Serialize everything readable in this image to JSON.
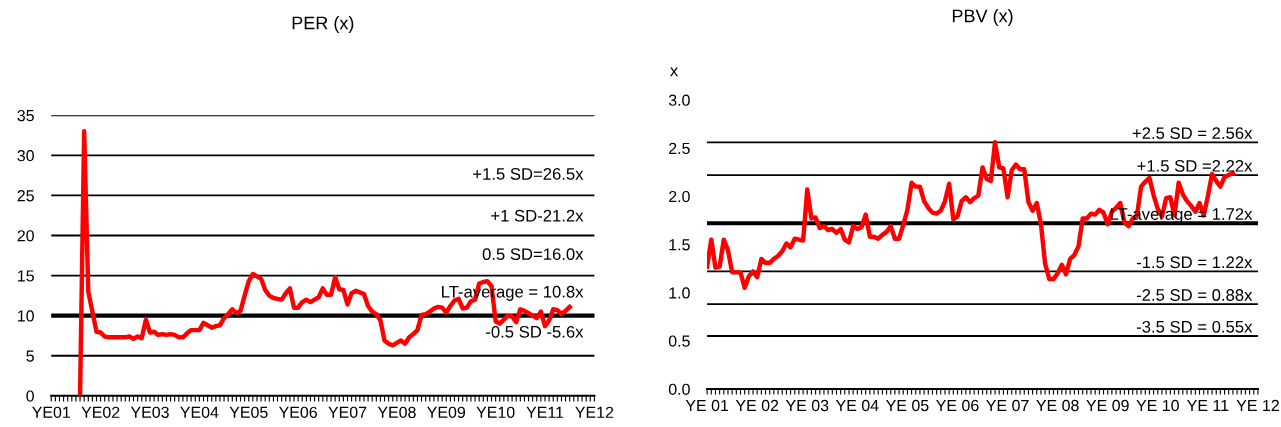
{
  "chart_data": [
    {
      "type": "line",
      "title": "PER (x)",
      "categories": [
        "YE01",
        null,
        null,
        null,
        null,
        null,
        null,
        null,
        null,
        null,
        null,
        null,
        "YE02",
        null,
        null,
        null,
        null,
        null,
        null,
        null,
        null,
        null,
        null,
        null,
        "YE03",
        null,
        null,
        null,
        null,
        null,
        null,
        null,
        null,
        null,
        null,
        null,
        "YE04",
        null,
        null,
        null,
        null,
        null,
        null,
        null,
        null,
        null,
        null,
        null,
        "YE05",
        null,
        null,
        null,
        null,
        null,
        null,
        null,
        null,
        null,
        null,
        null,
        "YE06",
        null,
        null,
        null,
        null,
        null,
        null,
        null,
        null,
        null,
        null,
        null,
        "YE07",
        null,
        null,
        null,
        null,
        null,
        null,
        null,
        null,
        null,
        null,
        null,
        "YE08",
        null,
        null,
        null,
        null,
        null,
        null,
        null,
        null,
        null,
        null,
        null,
        "YE09",
        null,
        null,
        null,
        null,
        null,
        null,
        null,
        null,
        null,
        null,
        null,
        "YE10",
        null,
        null,
        null,
        null,
        null,
        null,
        null,
        null,
        null,
        null,
        null,
        "YE11",
        null,
        null,
        null,
        null,
        null,
        null,
        null,
        null,
        null,
        null,
        null,
        "YE12"
      ],
      "ylim": [
        0,
        35
      ],
      "yticks": [
        0,
        5,
        10,
        15,
        20,
        25,
        30,
        35
      ],
      "grid": "y",
      "legend": false,
      "marker": "none",
      "line_style": "solid",
      "series": [
        {
          "color": "#ff0000",
          "values": [
            null,
            null,
            null,
            null,
            null,
            null,
            null,
            0,
            33,
            13,
            10.5,
            8,
            7.9,
            7.4,
            7.3,
            7.3,
            7.3,
            7.3,
            7.3,
            7.4,
            7.1,
            7.4,
            7.2,
            9.5,
            7.9,
            8.0,
            7.6,
            7.7,
            7.6,
            7.7,
            7.6,
            7.3,
            7.3,
            7.8,
            8.2,
            8.2,
            8.2,
            9.1,
            8.8,
            8.5,
            8.7,
            8.8,
            9.7,
            10.2,
            10.8,
            10.3,
            10.6,
            12.5,
            14.3,
            15.2,
            14.9,
            14.6,
            13.2,
            12.5,
            12.2,
            12.1,
            12.0,
            12.8,
            13.4,
            11.0,
            11.0,
            11.7,
            12.0,
            11.7,
            12.0,
            12.3,
            13.4,
            12.6,
            12.6,
            14.8,
            13.3,
            13.2,
            11.4,
            12.8,
            13.1,
            12.9,
            12.7,
            11.2,
            10.5,
            10.2,
            9.4,
            6.9,
            6.5,
            6.3,
            6.6,
            6.9,
            6.5,
            7.3,
            7.7,
            8.2,
            10.1,
            10.2,
            10.5,
            10.9,
            11.1,
            11.0,
            10.4,
            11.2,
            11.9,
            12.1,
            10.9,
            11.0,
            11.8,
            12.0,
            14.0,
            14.2,
            14.3,
            13.7,
            9.3,
            9.0,
            9.5,
            10.0,
            9.9,
            9.2,
            10.8,
            10.6,
            10.3,
            10.0,
            9.7,
            10.5,
            8.7,
            9.4,
            10.8,
            10.7,
            10.2,
            10.6,
            11.1,
            null,
            null,
            null,
            null,
            null,
            null
          ]
        }
      ],
      "ref_lines": [
        {
          "axis": "y",
          "value": 10,
          "color": "#000000"
        }
      ],
      "annotations": [
        "+1.5 SD=26.5x",
        "+1 SD-21.2x",
        "0.5 SD=16.0x",
        "LT-average = 10.8x",
        "-0.5 SD -5.6x"
      ]
    },
    {
      "type": "line",
      "title": "PBV (x)",
      "ylabel": "x",
      "categories": [
        "YE 01",
        null,
        null,
        null,
        null,
        null,
        null,
        null,
        null,
        null,
        null,
        null,
        "YE 02",
        null,
        null,
        null,
        null,
        null,
        null,
        null,
        null,
        null,
        null,
        null,
        "YE 03",
        null,
        null,
        null,
        null,
        null,
        null,
        null,
        null,
        null,
        null,
        null,
        "YE 04",
        null,
        null,
        null,
        null,
        null,
        null,
        null,
        null,
        null,
        null,
        null,
        "YE 05",
        null,
        null,
        null,
        null,
        null,
        null,
        null,
        null,
        null,
        null,
        null,
        "YE 06",
        null,
        null,
        null,
        null,
        null,
        null,
        null,
        null,
        null,
        null,
        null,
        "YE 07",
        null,
        null,
        null,
        null,
        null,
        null,
        null,
        null,
        null,
        null,
        null,
        "YE 08",
        null,
        null,
        null,
        null,
        null,
        null,
        null,
        null,
        null,
        null,
        null,
        "YE 09",
        null,
        null,
        null,
        null,
        null,
        null,
        null,
        null,
        null,
        null,
        null,
        "YE 10",
        null,
        null,
        null,
        null,
        null,
        null,
        null,
        null,
        null,
        null,
        null,
        "YE 11",
        null,
        null,
        null,
        null,
        null,
        null,
        null,
        null,
        null,
        null,
        null,
        "YE 12"
      ],
      "ylim": [
        0,
        3.0
      ],
      "yticks": [
        {
          "value": 0,
          "label": "0.0"
        },
        {
          "value": 0.5,
          "label": "0.5"
        },
        {
          "value": 1.0,
          "label": "1.0"
        },
        {
          "value": 1.5,
          "label": "1.5"
        },
        {
          "value": 2.0,
          "label": "2.0"
        },
        {
          "value": 2.5,
          "label": "2.5"
        },
        {
          "value": 3.0,
          "label": "3.0"
        }
      ],
      "grid": false,
      "legend": false,
      "marker": "none",
      "line_style": "solid",
      "series": [
        {
          "color": "#ff0000",
          "values": [
            1.27,
            1.55,
            1.26,
            1.27,
            1.55,
            1.44,
            1.21,
            1.21,
            1.21,
            1.05,
            1.17,
            1.22,
            1.16,
            1.35,
            1.31,
            1.31,
            1.35,
            1.38,
            1.43,
            1.51,
            1.47,
            1.56,
            1.55,
            1.54,
            2.07,
            1.77,
            1.78,
            1.67,
            1.69,
            1.65,
            1.66,
            1.62,
            1.66,
            1.55,
            1.52,
            1.69,
            1.66,
            1.68,
            1.81,
            1.58,
            1.58,
            1.56,
            1.6,
            1.63,
            1.69,
            1.56,
            1.56,
            1.7,
            1.86,
            2.14,
            2.1,
            2.1,
            1.95,
            1.88,
            1.83,
            1.82,
            1.85,
            1.95,
            2.13,
            1.76,
            1.79,
            1.95,
            1.99,
            1.94,
            1.98,
            2.01,
            2.3,
            2.18,
            2.16,
            2.56,
            2.3,
            2.29,
            1.99,
            2.27,
            2.33,
            2.28,
            2.28,
            1.94,
            1.85,
            1.93,
            1.71,
            1.3,
            1.14,
            1.14,
            1.2,
            1.29,
            1.19,
            1.35,
            1.39,
            1.48,
            1.77,
            1.77,
            1.82,
            1.81,
            1.86,
            1.83,
            1.71,
            1.84,
            1.88,
            1.93,
            1.73,
            1.69,
            1.77,
            1.8,
            2.1,
            2.15,
            2.19,
            2.01,
            1.87,
            1.79,
            1.98,
            1.99,
            1.8,
            2.14,
            2.02,
            1.95,
            1.9,
            1.84,
            1.93,
            1.8,
            2.0,
            2.23,
            2.16,
            2.1,
            2.2,
            2.22,
            2.24,
            null,
            null,
            null,
            null,
            null,
            null
          ]
        }
      ],
      "ref_lines": [
        {
          "axis": "y",
          "value": 2.56,
          "label": "+2.5 SD = 2.56x",
          "color": "#000000"
        },
        {
          "axis": "y",
          "value": 2.22,
          "label": "+1.5 SD =2.22x",
          "color": "#000000"
        },
        {
          "axis": "y",
          "value": 1.72,
          "label": "LT-average = 1.72x",
          "color": "#000000"
        },
        {
          "axis": "y",
          "value": 1.22,
          "label": "-1.5 SD = 1.22x",
          "color": "#000000"
        },
        {
          "axis": "y",
          "value": 0.88,
          "label": "-2.5 SD = 0.88x",
          "color": "#000000"
        },
        {
          "axis": "y",
          "value": 0.55,
          "label": "-3.5 SD = 0.55x",
          "color": "#000000"
        }
      ]
    }
  ]
}
